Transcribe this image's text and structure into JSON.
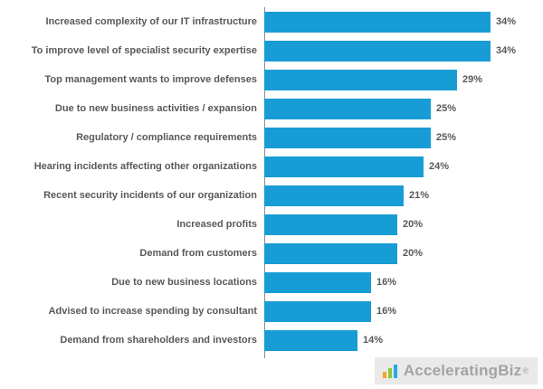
{
  "chart_data": {
    "type": "bar",
    "orientation": "horizontal",
    "title": "",
    "xlabel": "",
    "ylabel": "",
    "xlim": [
      0,
      40
    ],
    "grid": false,
    "bar_color": "#189CD5",
    "value_suffix": "%",
    "categories": [
      "Increased complexity of our IT infrastructure",
      "To improve level of specialist security expertise",
      "Top management wants to improve defenses",
      "Due to new business activities / expansion",
      "Regulatory / compliance requirements",
      "Hearing incidents affecting other organizations",
      "Recent security incidents of our organization",
      "Increased profits",
      "Demand from customers",
      "Due to new business locations",
      "Advised to increase spending by consultant",
      "Demand from shareholders and investors"
    ],
    "values": [
      34,
      34,
      29,
      25,
      25,
      24,
      21,
      20,
      20,
      16,
      16,
      14
    ]
  },
  "branding": {
    "logo_text": "AcceleratingBiz",
    "registered_mark": "®"
  }
}
